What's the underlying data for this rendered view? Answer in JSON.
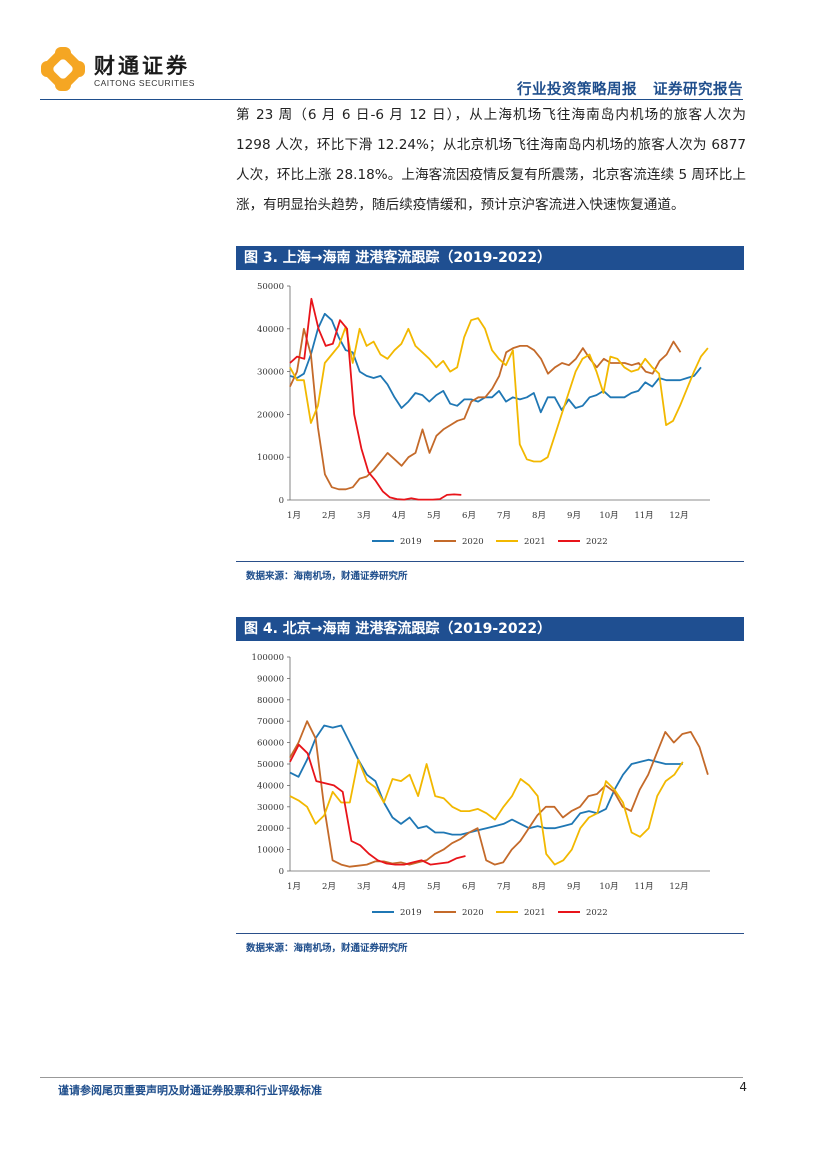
{
  "header": {
    "logo_cn": "财通证券",
    "logo_en": "CAITONG SECURITIES",
    "report_type": "行业投资策略周报",
    "report_category": "证券研究报告"
  },
  "body": {
    "paragraph": "第 23 周（6 月 6 日-6 月 12 日），从上海机场飞往海南岛内机场的旅客人次为 1298 人次，环比下滑 12.24%；从北京机场飞往海南岛内机场的旅客人次为 6877 人次，环比上涨 28.18%。上海客流因疫情反复有所震荡，北京客流连续 5 周环比上涨，有明显抬头趋势，随后续疫情缓和，预计京沪客流进入快速恢复通道。"
  },
  "figures": [
    {
      "title": "图 3. 上海→海南 进港客流跟踪（2019-2022）",
      "source": "数据来源：海南机场，财通证券研究所"
    },
    {
      "title": "图 4. 北京→海南 进港客流跟踪（2019-2022）",
      "source": "数据来源：海南机场，财通证券研究所"
    }
  ],
  "footer": {
    "disclaimer": "谨请参阅尾页重要声明及财通证券股票和行业评级标准",
    "page_number": "4"
  },
  "colors": {
    "brand_blue": "#1f4f91",
    "logo_orange": "#f5a623"
  },
  "chart_data": [
    {
      "type": "line",
      "x_labels": [
        "1月",
        "2月",
        "3月",
        "4月",
        "5月",
        "6月",
        "7月",
        "8月",
        "9月",
        "10月",
        "11月",
        "12月"
      ],
      "ylim": [
        0,
        50000
      ],
      "yticks": [
        0,
        10000,
        20000,
        30000,
        40000,
        50000
      ],
      "legend_position": "bottom",
      "series": [
        {
          "name": "2019",
          "color": "#1f77b4",
          "values": [
            29000,
            28500,
            29500,
            34000,
            40000,
            43500,
            42000,
            38000,
            35000,
            34500,
            30000,
            29000,
            28500,
            29000,
            27000,
            24000,
            21500,
            23000,
            25000,
            24500,
            23000,
            24500,
            25500,
            22500,
            22000,
            23500,
            23500,
            23000,
            24000,
            24000,
            25500,
            23000,
            24000,
            23500,
            24000,
            25000,
            20500,
            24000,
            24000,
            21000,
            23500,
            21500,
            22000,
            24000,
            24500,
            25500,
            24000,
            24000,
            24000,
            25000,
            25500,
            27500,
            26500,
            28500,
            28000,
            28000,
            28000,
            28500,
            29000,
            31000
          ]
        },
        {
          "name": "2020",
          "color": "#c46a2a",
          "values": [
            26500,
            30000,
            40000,
            34000,
            17000,
            6000,
            3000,
            2500,
            2500,
            3000,
            5000,
            5500,
            7000,
            9000,
            11000,
            9500,
            8000,
            10000,
            11000,
            16500,
            11000,
            15000,
            16500,
            17500,
            18500,
            19000,
            23000,
            24000,
            24000,
            26000,
            29000,
            34500,
            35500,
            36000,
            36000,
            35000,
            33000,
            29500,
            31000,
            32000,
            31500,
            33000,
            35500,
            33000,
            31000,
            33000,
            32000,
            32000,
            32000,
            31500,
            32000,
            30000,
            29500,
            32500,
            34000,
            37000,
            34500
          ]
        },
        {
          "name": "2021",
          "color": "#f2b800",
          "values": [
            31000,
            28000,
            28000,
            18000,
            22000,
            32000,
            34000,
            36000,
            40500,
            32000,
            40000,
            36000,
            37000,
            34000,
            33000,
            35000,
            36500,
            40000,
            36000,
            34500,
            33000,
            31000,
            32500,
            30000,
            31000,
            38000,
            42000,
            42500,
            40000,
            35000,
            33000,
            31500,
            35000,
            13000,
            9500,
            9000,
            9000,
            10000,
            15000,
            20000,
            25000,
            30000,
            33000,
            34000,
            30000,
            25000,
            33500,
            33000,
            31000,
            30000,
            30500,
            33000,
            31000,
            29500,
            17500,
            18500,
            22000,
            26000,
            30000,
            33500,
            35500
          ]
        },
        {
          "name": "2022",
          "color": "#e8141a",
          "values": [
            32000,
            33500,
            33000,
            47000,
            40000,
            36000,
            36500,
            42000,
            40000,
            20000,
            12000,
            6500,
            4500,
            2000,
            600,
            200,
            100,
            400,
            100,
            100,
            100,
            200,
            1200,
            1300,
            1200
          ]
        }
      ]
    },
    {
      "type": "line",
      "x_labels": [
        "1月",
        "2月",
        "3月",
        "4月",
        "5月",
        "6月",
        "7月",
        "8月",
        "9月",
        "10月",
        "11月",
        "12月"
      ],
      "ylim": [
        0,
        100000
      ],
      "yticks": [
        0,
        10000,
        20000,
        30000,
        40000,
        50000,
        60000,
        70000,
        80000,
        90000,
        100000
      ],
      "legend_position": "bottom",
      "series": [
        {
          "name": "2019",
          "color": "#1f77b4",
          "values": [
            46000,
            44000,
            52000,
            62000,
            68000,
            67000,
            68000,
            60000,
            52000,
            45000,
            42000,
            32000,
            25000,
            22000,
            25000,
            20000,
            21000,
            18000,
            18000,
            17000,
            17000,
            18000,
            19000,
            20000,
            21000,
            22000,
            24000,
            22000,
            20000,
            21000,
            20000,
            20000,
            21000,
            22000,
            27000,
            28000,
            27000,
            29000,
            38000,
            45000,
            50000,
            51000,
            52000,
            51000,
            50000,
            50000,
            50000
          ]
        },
        {
          "name": "2020",
          "color": "#c46a2a",
          "values": [
            53000,
            60000,
            70000,
            62000,
            30000,
            5000,
            3000,
            2000,
            2500,
            3000,
            4500,
            4500,
            3500,
            4000,
            3000,
            4000,
            5000,
            8000,
            10000,
            13000,
            15000,
            18000,
            20000,
            5000,
            3000,
            4000,
            10000,
            14000,
            20000,
            26000,
            30000,
            30000,
            25000,
            28000,
            30000,
            35000,
            36000,
            40000,
            37000,
            30000,
            28000,
            38000,
            45000,
            55000,
            65000,
            60000,
            64000,
            65000,
            58000,
            45000
          ]
        },
        {
          "name": "2021",
          "color": "#f2b800",
          "values": [
            35000,
            33000,
            30000,
            22000,
            26000,
            37000,
            32000,
            32000,
            52000,
            42000,
            39000,
            32000,
            43000,
            42000,
            45000,
            35000,
            50000,
            35000,
            34000,
            30000,
            28000,
            28000,
            29000,
            27000,
            24000,
            30000,
            35000,
            43000,
            40000,
            35000,
            8000,
            3000,
            5000,
            10000,
            20000,
            25000,
            27000,
            42000,
            38000,
            32000,
            18000,
            16000,
            20000,
            35000,
            42000,
            45000,
            51000
          ]
        },
        {
          "name": "2022",
          "color": "#e8141a",
          "values": [
            51000,
            59000,
            55000,
            42000,
            41000,
            40000,
            37000,
            14000,
            12000,
            8000,
            5000,
            3500,
            3000,
            3000,
            4000,
            5000,
            3000,
            3500,
            4000,
            6000,
            7000
          ]
        }
      ]
    }
  ]
}
